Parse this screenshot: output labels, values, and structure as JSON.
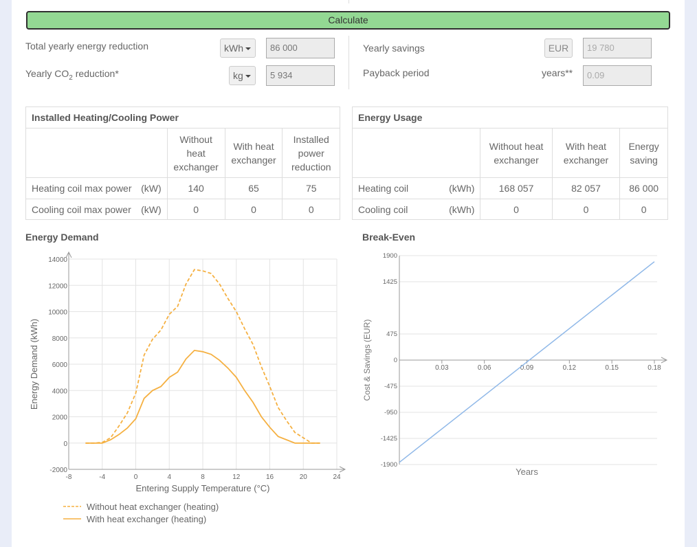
{
  "calculate": {
    "label": "Calculate"
  },
  "summary": {
    "energy_reduction": {
      "label": "Total yearly energy reduction",
      "unit": "kWh",
      "value": "86 000"
    },
    "co2_reduction": {
      "label_pre": "Yearly CO",
      "label_sub": "2",
      "label_post": " reduction*",
      "unit": "kg",
      "value": "5 934"
    },
    "savings": {
      "label": "Yearly savings",
      "unit": "EUR",
      "value": "19 780"
    },
    "payback": {
      "label": "Payback period",
      "unit": "years**",
      "value": "0.09"
    }
  },
  "power_table": {
    "caption": "Installed Heating/Cooling Power",
    "headers": [
      "Without heat exchanger",
      "With heat exchanger",
      "Installed power reduction"
    ],
    "rows": [
      {
        "label": "Heating coil max power",
        "unit": "(kW)",
        "values": [
          "140",
          "65",
          "75"
        ]
      },
      {
        "label": "Cooling coil max power",
        "unit": "(kW)",
        "values": [
          "0",
          "0",
          "0"
        ]
      }
    ]
  },
  "usage_table": {
    "caption": "Energy Usage",
    "headers": [
      "Without heat exchanger",
      "With heat exchanger",
      "Energy saving"
    ],
    "rows": [
      {
        "label": "Heating coil",
        "unit": "(kWh)",
        "values": [
          "168 057",
          "82 057",
          "86 000"
        ]
      },
      {
        "label": "Cooling coil",
        "unit": "(kWh)",
        "values": [
          "0",
          "0",
          "0"
        ]
      }
    ]
  },
  "chart_data": [
    {
      "type": "line",
      "title": "Energy Demand",
      "xlabel": "Entering Supply Temperature (°C)",
      "ylabel": "Energy Demand (kWh)",
      "xlim": [
        -8,
        24
      ],
      "ylim": [
        -2000,
        14000
      ],
      "xticks": [
        -8,
        -4,
        0,
        4,
        8,
        12,
        16,
        20,
        24
      ],
      "yticks": [
        -2000,
        0,
        2000,
        4000,
        6000,
        8000,
        10000,
        12000,
        14000
      ],
      "grid": true,
      "legend": "bottom-left",
      "series": [
        {
          "name": "Without heat exchanger (heating)",
          "color": "#f5b041",
          "dash": true,
          "x": [
            -6,
            -5,
            -4,
            -3,
            -2,
            -1,
            0,
            1,
            2,
            3,
            4,
            5,
            6,
            7,
            8,
            9,
            10,
            11,
            12,
            13,
            14,
            15,
            16,
            17,
            18,
            19,
            20,
            21,
            22
          ],
          "y": [
            0,
            0,
            50,
            400,
            1300,
            2300,
            3800,
            6700,
            7900,
            8600,
            9800,
            10400,
            12100,
            13200,
            13100,
            12900,
            12100,
            11000,
            10000,
            8700,
            7500,
            5800,
            4300,
            2700,
            1700,
            800,
            400,
            0,
            0
          ]
        },
        {
          "name": "With heat exchanger (heating)",
          "color": "#f5b041",
          "dash": false,
          "x": [
            -6,
            -5,
            -4,
            -3,
            -2,
            -1,
            0,
            1,
            2,
            3,
            4,
            5,
            6,
            7,
            8,
            9,
            10,
            11,
            12,
            13,
            14,
            15,
            16,
            17,
            18,
            19,
            20,
            21,
            22
          ],
          "y": [
            0,
            0,
            0,
            250,
            650,
            1150,
            1850,
            3400,
            4000,
            4300,
            5000,
            5400,
            6400,
            7050,
            6950,
            6750,
            6300,
            5700,
            5000,
            4000,
            3100,
            2000,
            1200,
            500,
            250,
            0,
            0,
            0,
            0
          ]
        }
      ]
    },
    {
      "type": "line",
      "title": "Break-Even",
      "xlabel": "Years",
      "ylabel": "Cost & Savings (EUR)",
      "xlim": [
        0,
        0.18
      ],
      "ylim": [
        -1900,
        1900
      ],
      "xticks": [
        0.03,
        0.06,
        0.09,
        0.12,
        0.15,
        0.18
      ],
      "yticks": [
        -1900,
        -1425,
        -950,
        -475,
        0,
        475,
        1425,
        1900
      ],
      "grid": true,
      "series": [
        {
          "color": "#8fb8e8",
          "x": [
            0,
            0.18
          ],
          "y": [
            -1860,
            1790
          ]
        }
      ]
    }
  ]
}
